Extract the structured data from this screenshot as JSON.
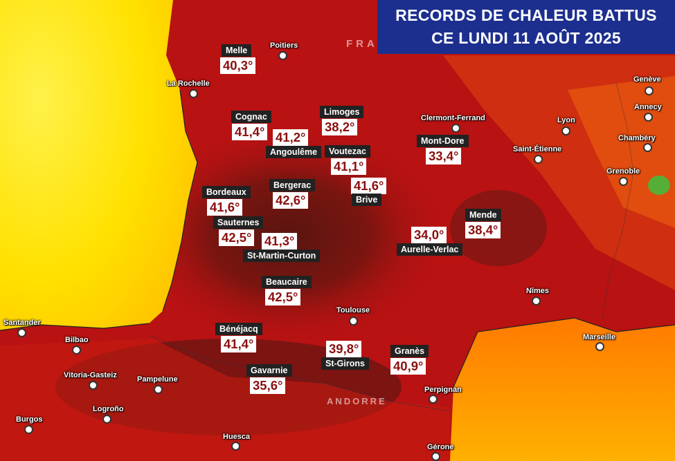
{
  "banner": {
    "line1": "RECORDS DE CHALEUR BATTUS",
    "line2": "CE LUNDI 11 AOÛT 2025",
    "background": "#1c2f8f"
  },
  "colors": {
    "sea_hot": "#ffe600",
    "land_hot": "#b01010",
    "value_text": "#8b0f0f",
    "label_bg": "#222222"
  },
  "countries": {
    "france": "FRA",
    "andorra": "ANDORRE"
  },
  "cities": [
    "Poitiers",
    "La Rochelle",
    "Clermont-Ferrand",
    "Lyon",
    "Genève",
    "Annecy",
    "Chambéry",
    "Saint-Étienne",
    "Grenoble",
    "Nîmes",
    "Marseille",
    "Toulouse",
    "Perpignan",
    "Santander",
    "Bilbao",
    "Vitoria-Gasteiz",
    "Pampelune",
    "Logroño",
    "Burgos",
    "Huesca",
    "Gérone"
  ],
  "stations": [
    {
      "name": "Melle",
      "value": "40,3°"
    },
    {
      "name": "Cognac",
      "value": "41,4°"
    },
    {
      "name": "Angoulême",
      "value": "41,2°"
    },
    {
      "name": "Limoges",
      "value": "38,2°"
    },
    {
      "name": "Voutezac",
      "value": "41,1°"
    },
    {
      "name": "Brive",
      "value": "41,6°"
    },
    {
      "name": "Mont-Dore",
      "value": "33,4°"
    },
    {
      "name": "Bordeaux",
      "value": "41,6°"
    },
    {
      "name": "Bergerac",
      "value": "42,6°"
    },
    {
      "name": "Sauternes",
      "value": "42,5°"
    },
    {
      "name": "St-Martin-Curton",
      "value": "41,3°"
    },
    {
      "name": "Aurelle-Verlac",
      "value": "34,0°"
    },
    {
      "name": "Mende",
      "value": "38,4°"
    },
    {
      "name": "Beaucaire",
      "value": "42,5°"
    },
    {
      "name": "Bénéjacq",
      "value": "41,4°"
    },
    {
      "name": "St-Girons",
      "value": "39,8°"
    },
    {
      "name": "Granès",
      "value": "40,9°"
    },
    {
      "name": "Gavarnie",
      "value": "35,6°"
    }
  ]
}
